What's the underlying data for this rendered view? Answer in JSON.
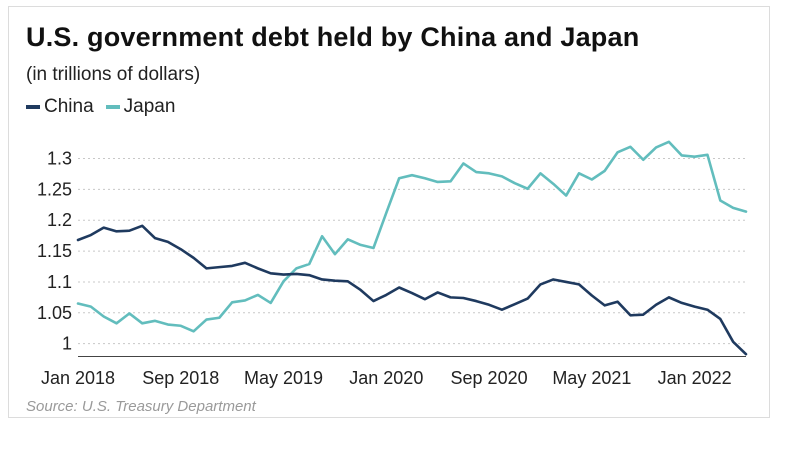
{
  "chart_data": {
    "type": "line",
    "title": "U.S. government debt held by China and Japan",
    "subtitle": "(in trillions of dollars)",
    "source": "Source: U.S. Treasury Department",
    "xlabel": "",
    "ylabel": "",
    "ylim": [
      0.98,
      1.33
    ],
    "yticks": [
      1,
      1.05,
      1.1,
      1.15,
      1.2,
      1.25,
      1.3
    ],
    "ytick_labels": [
      "1",
      "1.05",
      "1.1",
      "1.15",
      "1.2",
      "1.25",
      "1.3"
    ],
    "xticks": [
      0,
      8,
      16,
      24,
      32,
      40,
      48
    ],
    "xtick_labels": [
      "Jan 2018",
      "Sep 2018",
      "May 2019",
      "Jan 2020",
      "Sep 2020",
      "May 2021",
      "Jan 2022"
    ],
    "x_range": [
      0,
      52
    ],
    "grid": "horizontal dashed",
    "legend_position": "top-left",
    "series": [
      {
        "name": "China",
        "color": "#1f3a5f",
        "values": [
          1.168,
          1.176,
          1.188,
          1.182,
          1.183,
          1.191,
          1.171,
          1.165,
          1.153,
          1.139,
          1.122,
          1.124,
          1.126,
          1.131,
          1.122,
          1.114,
          1.112,
          1.113,
          1.111,
          1.104,
          1.102,
          1.101,
          1.087,
          1.069,
          1.079,
          1.091,
          1.082,
          1.072,
          1.083,
          1.075,
          1.074,
          1.069,
          1.063,
          1.055,
          1.064,
          1.073,
          1.096,
          1.104,
          1.1,
          1.096,
          1.078,
          1.062,
          1.068,
          1.046,
          1.047,
          1.063,
          1.075,
          1.066,
          1.06,
          1.055,
          1.04,
          1.003,
          0.983
        ]
      },
      {
        "name": "Japan",
        "color": "#62bdbd",
        "values": [
          1.065,
          1.06,
          1.044,
          1.033,
          1.049,
          1.033,
          1.037,
          1.031,
          1.029,
          1.02,
          1.039,
          1.042,
          1.067,
          1.07,
          1.079,
          1.066,
          1.101,
          1.122,
          1.129,
          1.174,
          1.145,
          1.169,
          1.16,
          1.155,
          1.212,
          1.268,
          1.273,
          1.268,
          1.262,
          1.263,
          1.292,
          1.278,
          1.276,
          1.271,
          1.26,
          1.251,
          1.276,
          1.259,
          1.24,
          1.276,
          1.266,
          1.28,
          1.31,
          1.319,
          1.298,
          1.318,
          1.327,
          1.305,
          1.303,
          1.306,
          1.232,
          1.22,
          1.214
        ]
      }
    ]
  }
}
